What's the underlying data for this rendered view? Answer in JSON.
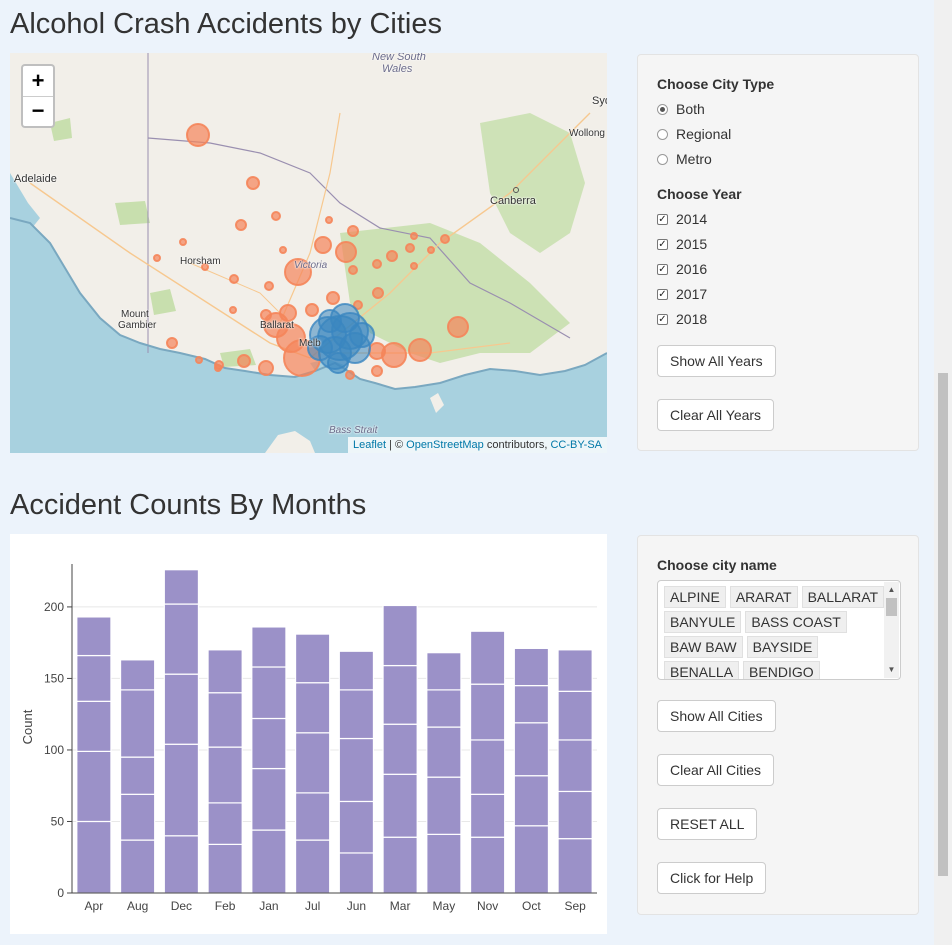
{
  "map_section": {
    "title": "Alcohol Crash Accidents by Cities",
    "zoom_in": "+",
    "zoom_out": "−",
    "labels": [
      "New South",
      "Wales",
      "Syd",
      "Wollong",
      "Adelaide",
      "Canberra",
      "Horsham",
      "Victoria",
      "Mount",
      "Gambier",
      "Ballarat",
      "Melb",
      "Bass Strait"
    ],
    "attribution": {
      "leaflet": "Leaflet",
      "sep": " | © ",
      "osm": "OpenStreetMap",
      "contrib": " contributors, ",
      "license": "CC-BY-SA"
    },
    "colors": {
      "regional": "#f5855a",
      "metro": "#3a86c0",
      "land": "#f2efe9",
      "water": "#a8d1df",
      "park": "#c8dfae"
    }
  },
  "filter_panel": {
    "city_type_label": "Choose City Type",
    "city_types": [
      {
        "label": "Both",
        "selected": true
      },
      {
        "label": "Regional",
        "selected": false
      },
      {
        "label": "Metro",
        "selected": false
      }
    ],
    "year_label": "Choose Year",
    "years": [
      {
        "label": "2014",
        "checked": true
      },
      {
        "label": "2015",
        "checked": true
      },
      {
        "label": "2016",
        "checked": true
      },
      {
        "label": "2017",
        "checked": true
      },
      {
        "label": "2018",
        "checked": true
      }
    ],
    "show_all_years": "Show All Years",
    "clear_all_years": "Clear All Years"
  },
  "city_panel": {
    "city_label": "Choose city name",
    "chip_rows": [
      [
        "ALPINE",
        "ARARAT",
        "BALLARAT"
      ],
      [
        "BANYULE",
        "BASS COAST"
      ],
      [
        "BAW BAW",
        "BAYSIDE"
      ],
      [
        "BENALLA",
        "BENDIGO"
      ]
    ],
    "show_all_cities": "Show All Cities",
    "clear_all_cities": "Clear All Cities",
    "reset_all": "RESET ALL",
    "help": "Click for Help"
  },
  "chart_section": {
    "title": "Accident Counts By Months"
  },
  "chart_data": {
    "type": "bar",
    "stacked": true,
    "categories": [
      "Apr",
      "Aug",
      "Dec",
      "Feb",
      "Jan",
      "Jul",
      "Jun",
      "Mar",
      "May",
      "Nov",
      "Oct",
      "Sep"
    ],
    "totals": [
      193,
      163,
      226,
      170,
      186,
      181,
      169,
      201,
      168,
      183,
      171,
      170
    ],
    "segments": [
      [
        50,
        49,
        35,
        32,
        27
      ],
      [
        37,
        32,
        26,
        47,
        21
      ],
      [
        40,
        64,
        49,
        49,
        24
      ],
      [
        34,
        29,
        39,
        38,
        30
      ],
      [
        44,
        43,
        35,
        36,
        28
      ],
      [
        37,
        33,
        42,
        35,
        34
      ],
      [
        28,
        36,
        44,
        34,
        27
      ],
      [
        39,
        44,
        35,
        41,
        42
      ],
      [
        41,
        40,
        35,
        26,
        26
      ],
      [
        39,
        30,
        38,
        39,
        37
      ],
      [
        47,
        35,
        37,
        26,
        26
      ],
      [
        38,
        33,
        36,
        34,
        29
      ]
    ],
    "ylabel": "Count",
    "ylim": [
      0,
      230
    ],
    "yticks": [
      0,
      50,
      100,
      150,
      200
    ],
    "bar_color": "#9b91c8",
    "grid": true
  }
}
